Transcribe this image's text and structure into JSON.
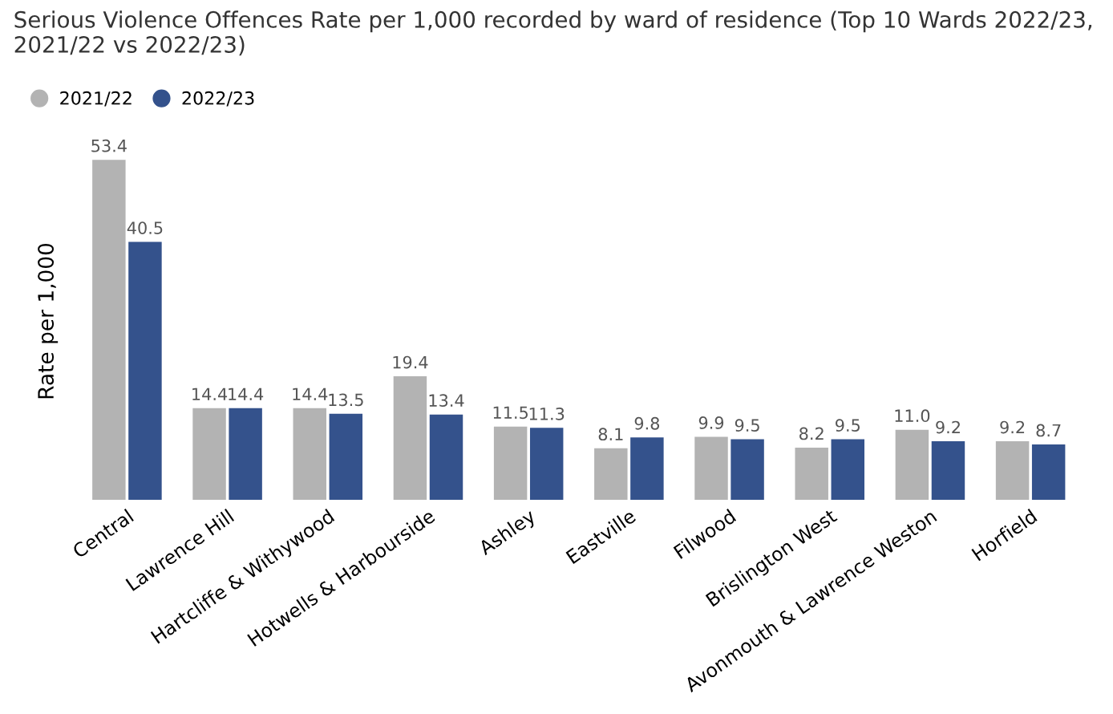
{
  "chart_data": {
    "type": "bar",
    "title": "Serious Violence Offences Rate per 1,000 recorded by ward of residence (Top 10 Wards 2022/23, 2021/22 vs 2022/23)",
    "ylabel": "Rate per 1,000",
    "categories": [
      "Central",
      "Lawrence Hill",
      "Hartcliffe & Withywood",
      "Hotwells & Harbourside",
      "Ashley",
      "Eastville",
      "Filwood",
      "Brislington West",
      "Avonmouth & Lawrence Weston",
      "Horfield"
    ],
    "series": [
      {
        "name": "2021/22",
        "color": "#b3b3b3",
        "values": [
          53.4,
          14.4,
          14.4,
          19.4,
          11.5,
          8.1,
          9.9,
          8.2,
          11.0,
          9.2
        ],
        "value_labels": [
          "53.4",
          "14.4",
          "14.4",
          "19.4",
          "11.5",
          "8.1",
          "9.9",
          "8.2",
          "11.0",
          "9.2"
        ]
      },
      {
        "name": "2022/23",
        "color": "#34528c",
        "values": [
          40.5,
          14.4,
          13.5,
          13.4,
          11.3,
          9.8,
          9.5,
          9.5,
          9.2,
          8.7
        ],
        "value_labels": [
          "40.5",
          "14.4",
          "13.5",
          "13.4",
          "11.3",
          "9.8",
          "9.5",
          "9.5",
          "9.2",
          "8.7"
        ]
      }
    ],
    "legend": "top left",
    "grid": false
  }
}
